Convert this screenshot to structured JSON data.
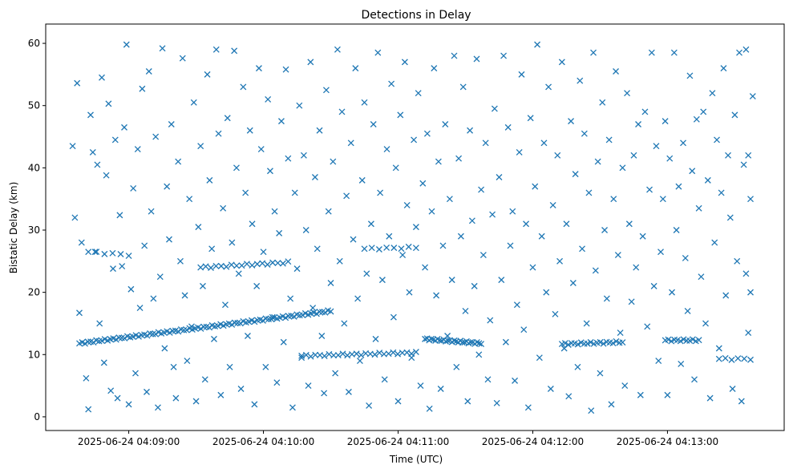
{
  "chart_data": {
    "type": "scatter",
    "title": "Detections in Delay",
    "xlabel": "Time (UTC)",
    "ylabel": "Bistatic Delay (km)",
    "x_units": "seconds after 2025-06-24 04:09:00",
    "xlim": [
      -37,
      292
    ],
    "ylim": [
      -2.2,
      63.1
    ],
    "grid": false,
    "marker": "x",
    "color": "#1f77b4",
    "x_ticks": [
      {
        "value": 0,
        "label": "2025-06-24 04:09:00"
      },
      {
        "value": 60,
        "label": "2025-06-24 04:10:00"
      },
      {
        "value": 120,
        "label": "2025-06-24 04:11:00"
      },
      {
        "value": 180,
        "label": "2025-06-24 04:12:00"
      },
      {
        "value": 240,
        "label": "2025-06-24 04:13:00"
      }
    ],
    "y_ticks": [
      {
        "value": 0,
        "label": "0"
      },
      {
        "value": 10,
        "label": "10"
      },
      {
        "value": 20,
        "label": "20"
      },
      {
        "value": 30,
        "label": "30"
      },
      {
        "value": 40,
        "label": "40"
      },
      {
        "value": 50,
        "label": "50"
      },
      {
        "value": 60,
        "label": "60"
      }
    ],
    "tracks": [
      {
        "t0": -22,
        "t1": 90,
        "d0": 11.8,
        "d1": 17.0,
        "n": 90
      },
      {
        "t0": -18,
        "t1": 0,
        "d0": 26.5,
        "d1": 26.0,
        "n": 6
      },
      {
        "t0": 32,
        "t1": 71,
        "d0": 24.0,
        "d1": 24.8,
        "n": 18
      },
      {
        "t0": 105,
        "t1": 128,
        "d0": 27.0,
        "d1": 27.2,
        "n": 8
      },
      {
        "t0": 77,
        "t1": 128,
        "d0": 9.8,
        "d1": 10.3,
        "n": 26
      },
      {
        "t0": 132,
        "t1": 157,
        "d0": 12.5,
        "d1": 11.8,
        "n": 28
      },
      {
        "t0": 193,
        "t1": 220,
        "d0": 11.7,
        "d1": 12.0,
        "n": 20
      },
      {
        "t0": 239,
        "t1": 254,
        "d0": 12.3,
        "d1": 12.3,
        "n": 12
      },
      {
        "t0": 263,
        "t1": 277,
        "d0": 9.3,
        "d1": 9.3,
        "n": 6
      }
    ],
    "points": [
      [
        -25,
        43.5
      ],
      [
        -24,
        32
      ],
      [
        -23,
        53.6
      ],
      [
        -22,
        16.7
      ],
      [
        -21,
        28
      ],
      [
        -19,
        6.2
      ],
      [
        -18,
        1.2
      ],
      [
        -17,
        48.5
      ],
      [
        -16,
        42.5
      ],
      [
        -15,
        26.5
      ],
      [
        -14,
        40.5
      ],
      [
        -13,
        15
      ],
      [
        -12,
        54.5
      ],
      [
        -11,
        8.7
      ],
      [
        -10,
        38.8
      ],
      [
        -9,
        50.3
      ],
      [
        -8,
        4.2
      ],
      [
        -7,
        23.8
      ],
      [
        -6,
        44.5
      ],
      [
        -5,
        3
      ],
      [
        -4,
        32.4
      ],
      [
        -3,
        24.2
      ],
      [
        -2,
        46.5
      ],
      [
        -1,
        59.8
      ],
      [
        0,
        2
      ],
      [
        1,
        20.5
      ],
      [
        2,
        36.7
      ],
      [
        3,
        7
      ],
      [
        4,
        43
      ],
      [
        5,
        17.5
      ],
      [
        6,
        52.7
      ],
      [
        7,
        27.5
      ],
      [
        8,
        4
      ],
      [
        9,
        55.5
      ],
      [
        10,
        33
      ],
      [
        11,
        19
      ],
      [
        12,
        45
      ],
      [
        13,
        1.5
      ],
      [
        14,
        22.5
      ],
      [
        15,
        59.2
      ],
      [
        16,
        11
      ],
      [
        17,
        37
      ],
      [
        18,
        28.5
      ],
      [
        19,
        47
      ],
      [
        20,
        8
      ],
      [
        21,
        3
      ],
      [
        22,
        41
      ],
      [
        23,
        25
      ],
      [
        24,
        57.6
      ],
      [
        25,
        19.5
      ],
      [
        26,
        9
      ],
      [
        27,
        35
      ],
      [
        28,
        14.5
      ],
      [
        29,
        50.5
      ],
      [
        30,
        2.5
      ],
      [
        31,
        30.5
      ],
      [
        32,
        43.5
      ],
      [
        33,
        21
      ],
      [
        34,
        6
      ],
      [
        35,
        55
      ],
      [
        36,
        38
      ],
      [
        37,
        27
      ],
      [
        38,
        12.5
      ],
      [
        39,
        59
      ],
      [
        40,
        45.5
      ],
      [
        41,
        3.5
      ],
      [
        42,
        33.5
      ],
      [
        43,
        18
      ],
      [
        44,
        48
      ],
      [
        45,
        8
      ],
      [
        46,
        28
      ],
      [
        47,
        58.8
      ],
      [
        48,
        40
      ],
      [
        49,
        23
      ],
      [
        50,
        4.5
      ],
      [
        51,
        53
      ],
      [
        52,
        36
      ],
      [
        53,
        13
      ],
      [
        54,
        46
      ],
      [
        55,
        31
      ],
      [
        56,
        2
      ],
      [
        57,
        21
      ],
      [
        58,
        56
      ],
      [
        59,
        43
      ],
      [
        60,
        26.5
      ],
      [
        61,
        8
      ],
      [
        62,
        51
      ],
      [
        63,
        39.5
      ],
      [
        64,
        16
      ],
      [
        65,
        33
      ],
      [
        66,
        5.5
      ],
      [
        67,
        29.5
      ],
      [
        68,
        47.5
      ],
      [
        69,
        12
      ],
      [
        70,
        55.8
      ],
      [
        71,
        41.5
      ],
      [
        72,
        19
      ],
      [
        73,
        1.5
      ],
      [
        74,
        36
      ],
      [
        75,
        23.8
      ],
      [
        76,
        50
      ],
      [
        77,
        9.5
      ],
      [
        78,
        42
      ],
      [
        79,
        30
      ],
      [
        80,
        5
      ],
      [
        81,
        57
      ],
      [
        82,
        17.5
      ],
      [
        83,
        38.5
      ],
      [
        84,
        27
      ],
      [
        85,
        46
      ],
      [
        86,
        13
      ],
      [
        87,
        3.8
      ],
      [
        88,
        52.5
      ],
      [
        89,
        33
      ],
      [
        90,
        21.5
      ],
      [
        91,
        41
      ],
      [
        92,
        7
      ],
      [
        93,
        59
      ],
      [
        94,
        25
      ],
      [
        95,
        49
      ],
      [
        96,
        15
      ],
      [
        97,
        35.5
      ],
      [
        98,
        4
      ],
      [
        99,
        44
      ],
      [
        100,
        28.5
      ],
      [
        101,
        56
      ],
      [
        102,
        19
      ],
      [
        103,
        9
      ],
      [
        104,
        38
      ],
      [
        105,
        50.5
      ],
      [
        106,
        23
      ],
      [
        107,
        1.8
      ],
      [
        108,
        31
      ],
      [
        109,
        47
      ],
      [
        110,
        12.5
      ],
      [
        111,
        58.5
      ],
      [
        112,
        36
      ],
      [
        113,
        22
      ],
      [
        114,
        6
      ],
      [
        115,
        43
      ],
      [
        116,
        29
      ],
      [
        117,
        53.5
      ],
      [
        118,
        16
      ],
      [
        119,
        40
      ],
      [
        120,
        2.5
      ],
      [
        121,
        48.5
      ],
      [
        122,
        26
      ],
      [
        123,
        57
      ],
      [
        124,
        34
      ],
      [
        125,
        20
      ],
      [
        126,
        9.5
      ],
      [
        127,
        44.5
      ],
      [
        128,
        30.5
      ],
      [
        129,
        52
      ],
      [
        130,
        5
      ],
      [
        131,
        37.5
      ],
      [
        132,
        24
      ],
      [
        133,
        45.5
      ],
      [
        134,
        1.3
      ],
      [
        135,
        33
      ],
      [
        136,
        56
      ],
      [
        137,
        19.5
      ],
      [
        138,
        41
      ],
      [
        139,
        4.5
      ],
      [
        140,
        27.5
      ],
      [
        141,
        47
      ],
      [
        142,
        13
      ],
      [
        143,
        35
      ],
      [
        144,
        22
      ],
      [
        145,
        58
      ],
      [
        146,
        8
      ],
      [
        147,
        41.5
      ],
      [
        148,
        29
      ],
      [
        149,
        53
      ],
      [
        150,
        17
      ],
      [
        151,
        2.5
      ],
      [
        152,
        46
      ],
      [
        153,
        31.5
      ],
      [
        154,
        21
      ],
      [
        155,
        57.5
      ],
      [
        156,
        10
      ],
      [
        157,
        36.5
      ],
      [
        158,
        26
      ],
      [
        159,
        44
      ],
      [
        160,
        6
      ],
      [
        161,
        15.5
      ],
      [
        162,
        32.5
      ],
      [
        163,
        49.5
      ],
      [
        164,
        2.2
      ],
      [
        165,
        38.5
      ],
      [
        166,
        22
      ],
      [
        167,
        58
      ],
      [
        168,
        12
      ],
      [
        169,
        46.5
      ],
      [
        170,
        27.5
      ],
      [
        171,
        33
      ],
      [
        172,
        5.8
      ],
      [
        173,
        18
      ],
      [
        174,
        42.5
      ],
      [
        175,
        55
      ],
      [
        176,
        14
      ],
      [
        177,
        31
      ],
      [
        178,
        1.5
      ],
      [
        179,
        48
      ],
      [
        180,
        24
      ],
      [
        181,
        37
      ],
      [
        182,
        59.8
      ],
      [
        183,
        9.5
      ],
      [
        184,
        29
      ],
      [
        185,
        44
      ],
      [
        186,
        20
      ],
      [
        187,
        53
      ],
      [
        188,
        4.5
      ],
      [
        189,
        34
      ],
      [
        190,
        16.5
      ],
      [
        191,
        42
      ],
      [
        192,
        25
      ],
      [
        193,
        57
      ],
      [
        194,
        11
      ],
      [
        195,
        31
      ],
      [
        196,
        3.3
      ],
      [
        197,
        47.5
      ],
      [
        198,
        21.5
      ],
      [
        199,
        39
      ],
      [
        200,
        8
      ],
      [
        201,
        54
      ],
      [
        202,
        27
      ],
      [
        203,
        45.5
      ],
      [
        204,
        15
      ],
      [
        205,
        36
      ],
      [
        206,
        1
      ],
      [
        207,
        58.5
      ],
      [
        208,
        23.5
      ],
      [
        209,
        41
      ],
      [
        210,
        7
      ],
      [
        211,
        50.5
      ],
      [
        212,
        30
      ],
      [
        213,
        19
      ],
      [
        214,
        44.5
      ],
      [
        215,
        2
      ],
      [
        216,
        35
      ],
      [
        217,
        55.5
      ],
      [
        218,
        26
      ],
      [
        219,
        13.5
      ],
      [
        220,
        40
      ],
      [
        221,
        5
      ],
      [
        222,
        52
      ],
      [
        223,
        31
      ],
      [
        224,
        18.5
      ],
      [
        225,
        42
      ],
      [
        226,
        24
      ],
      [
        227,
        47
      ],
      [
        228,
        3.5
      ],
      [
        229,
        29
      ],
      [
        230,
        49
      ],
      [
        231,
        14.5
      ],
      [
        232,
        36.5
      ],
      [
        233,
        58.5
      ],
      [
        234,
        21
      ],
      [
        235,
        43.5
      ],
      [
        236,
        9
      ],
      [
        237,
        26.5
      ],
      [
        238,
        35
      ],
      [
        239,
        47.5
      ],
      [
        240,
        3.5
      ],
      [
        241,
        41.5
      ],
      [
        242,
        20
      ],
      [
        243,
        58.5
      ],
      [
        244,
        30
      ],
      [
        245,
        37
      ],
      [
        246,
        8.5
      ],
      [
        247,
        44
      ],
      [
        248,
        25.5
      ],
      [
        249,
        17
      ],
      [
        250,
        54.8
      ],
      [
        251,
        39.5
      ],
      [
        252,
        6
      ],
      [
        253,
        47.8
      ],
      [
        254,
        33.5
      ],
      [
        255,
        22.5
      ],
      [
        256,
        49
      ],
      [
        257,
        15
      ],
      [
        258,
        38
      ],
      [
        259,
        3
      ],
      [
        260,
        52
      ],
      [
        261,
        28
      ],
      [
        262,
        44.5
      ],
      [
        263,
        11
      ],
      [
        264,
        36
      ],
      [
        265,
        56
      ],
      [
        266,
        19.5
      ],
      [
        267,
        42
      ],
      [
        268,
        32
      ],
      [
        269,
        4.5
      ],
      [
        270,
        48.5
      ],
      [
        271,
        25
      ],
      [
        272,
        58.5
      ],
      [
        273,
        2.5
      ],
      [
        274,
        40.5
      ],
      [
        275,
        23
      ],
      [
        276,
        13.5
      ],
      [
        277,
        35
      ],
      [
        278,
        51.5
      ],
      [
        275,
        59
      ],
      [
        276,
        42
      ],
      [
        277,
        20
      ]
    ]
  }
}
